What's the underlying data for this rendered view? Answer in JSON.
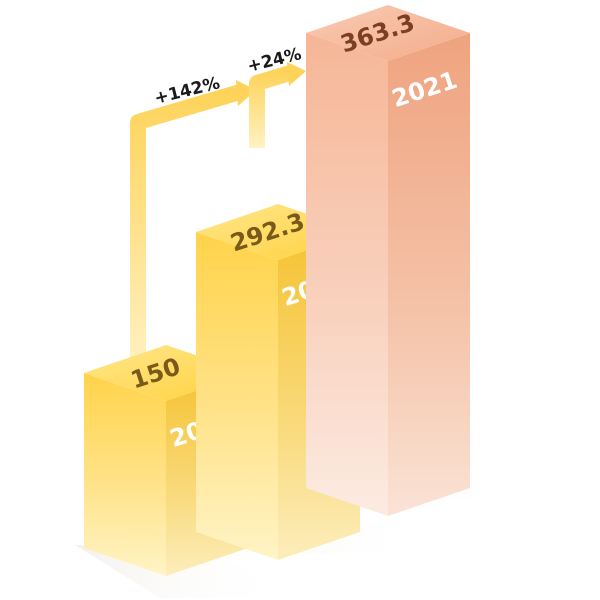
{
  "chart_data": {
    "type": "bar",
    "title": "",
    "xlabel": "",
    "ylabel": "",
    "categories": [
      "2019",
      "2020",
      "2021"
    ],
    "values": [
      150,
      292.3,
      363.3
    ],
    "value_labels": [
      "150",
      "292.3",
      "363.3"
    ],
    "growth_labels": [
      "+142%",
      "+24%"
    ],
    "grid": false,
    "legend": "none"
  },
  "colors": {
    "bar_2019": "#FFD23F",
    "bar_2020": "#FFD23F",
    "bar_2021": "#F6B897",
    "arrow": "#FDD86A",
    "value_text_2019": "#7A5A1A",
    "value_text_2020": "#7A5A1A",
    "value_text_2021": "#7C3F26",
    "year_text": "#FFFFFF",
    "growth_text": "#1A1A1A"
  }
}
